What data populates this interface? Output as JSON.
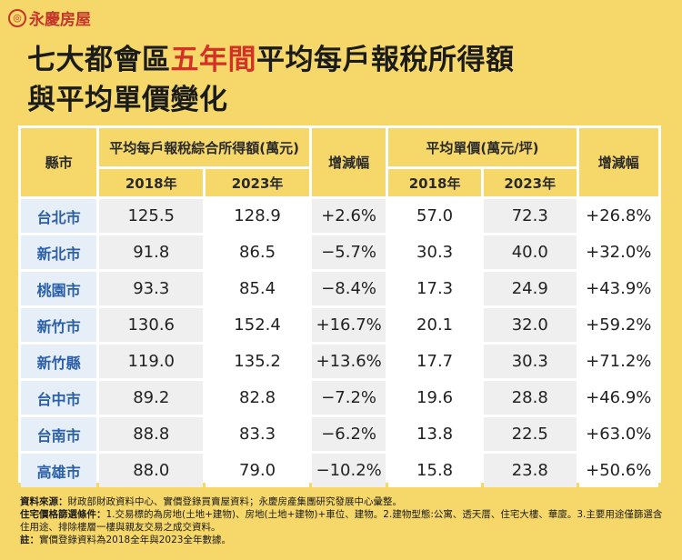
{
  "brand": {
    "name": "永慶房屋",
    "mark": "◎"
  },
  "title": {
    "part1": "七大都會區",
    "highlight": "五年間",
    "part2": "平均每戶報稅所得額",
    "line2": "與平均單價變化"
  },
  "table": {
    "header_city": "縣市",
    "header_income": "平均每戶報稅綜合所得額(萬元)",
    "header_change1": "增減幅",
    "header_price": "平均單價(萬元/坪)",
    "header_change2": "增減幅",
    "year_a": "2018年",
    "year_b": "2023年",
    "year_c": "2018年",
    "year_d": "2023年",
    "rows": [
      {
        "city": "台北市",
        "inc18": "125.5",
        "inc23": "128.9",
        "inc_chg": "+2.6%",
        "pr18": "57.0",
        "pr23": "72.3",
        "pr_chg": "+26.8%"
      },
      {
        "city": "新北市",
        "inc18": "91.8",
        "inc23": "86.5",
        "inc_chg": "−5.7%",
        "pr18": "30.3",
        "pr23": "40.0",
        "pr_chg": "+32.0%"
      },
      {
        "city": "桃園市",
        "inc18": "93.3",
        "inc23": "85.4",
        "inc_chg": "−8.4%",
        "pr18": "17.3",
        "pr23": "24.9",
        "pr_chg": "+43.9%"
      },
      {
        "city": "新竹市",
        "inc18": "130.6",
        "inc23": "152.4",
        "inc_chg": "+16.7%",
        "pr18": "20.1",
        "pr23": "32.0",
        "pr_chg": "+59.2%"
      },
      {
        "city": "新竹縣",
        "inc18": "119.0",
        "inc23": "135.2",
        "inc_chg": "+13.6%",
        "pr18": "17.7",
        "pr23": "30.3",
        "pr_chg": "+71.2%"
      },
      {
        "city": "台中市",
        "inc18": "89.2",
        "inc23": "82.8",
        "inc_chg": "−7.2%",
        "pr18": "19.6",
        "pr23": "28.8",
        "pr_chg": "+46.9%"
      },
      {
        "city": "台南市",
        "inc18": "88.8",
        "inc23": "83.3",
        "inc_chg": "−6.2%",
        "pr18": "13.8",
        "pr23": "22.5",
        "pr_chg": "+63.0%"
      },
      {
        "city": "高雄市",
        "inc18": "88.0",
        "inc23": "79.0",
        "inc_chg": "−10.2%",
        "pr18": "15.8",
        "pr23": "23.8",
        "pr_chg": "+50.6%"
      }
    ]
  },
  "footer": {
    "source_label": "資料來源：",
    "source_text": "財政部財政資料中心、實價登錄買賣屋資料；永慶房產集團研究發展中心彙整。",
    "filter_label": "住宅價格篩選條件：",
    "filter_text": "1.交易標的為房地(土地+建物)、房地(土地+建物)+車位、建物。2.建物型態:公寓、透天厝、住宅大樓、華廈。3.主要用途僅篩選含住用途、排除樓層一樓與親友交易之成交資料。",
    "note_label": "註：",
    "note_text": "實價登錄資料為2018全年與2023全年數據。"
  }
}
